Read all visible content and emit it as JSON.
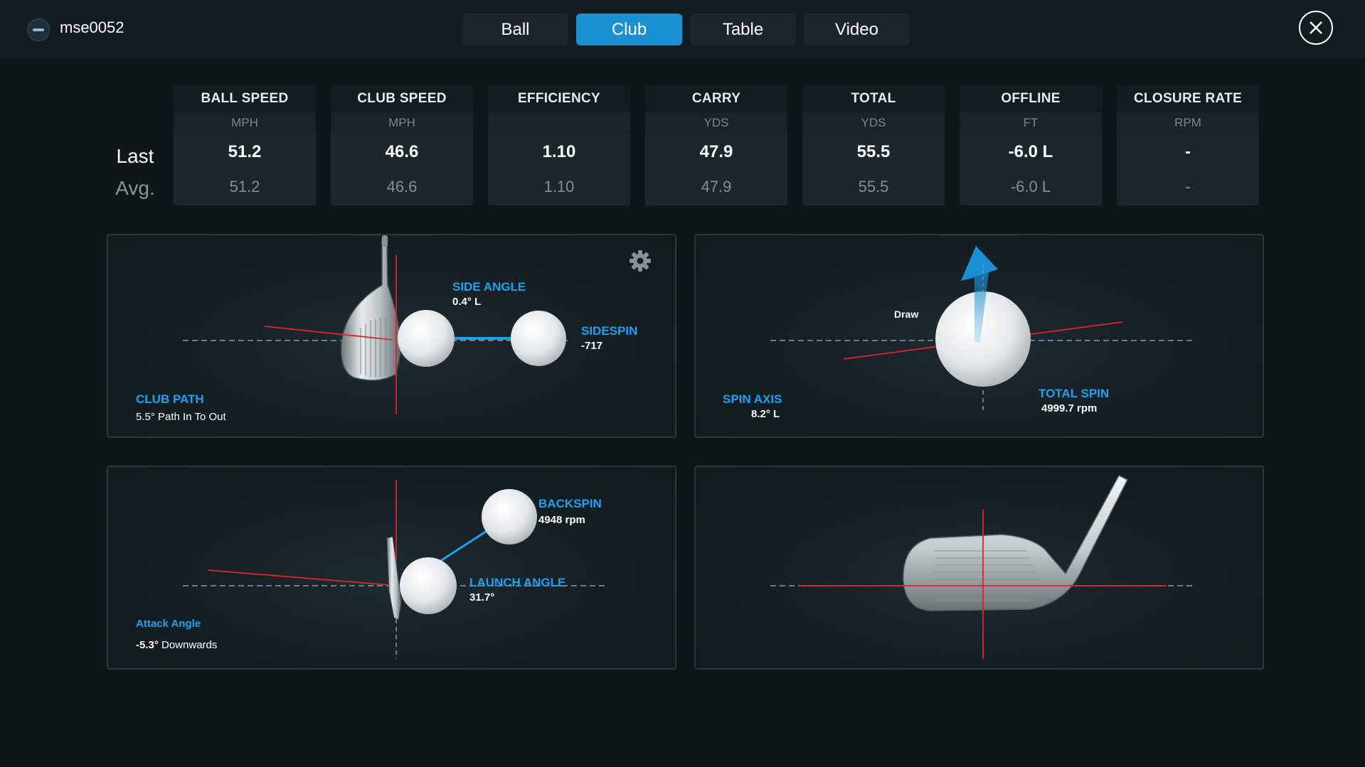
{
  "header": {
    "username": "mse0052",
    "tabs": [
      "Ball",
      "Club",
      "Table",
      "Video"
    ],
    "active_tab": "Club"
  },
  "rows": {
    "last": "Last",
    "avg": "Avg."
  },
  "metrics": [
    {
      "title": "BALL SPEED",
      "unit": "MPH",
      "last": "51.2",
      "avg": "51.2"
    },
    {
      "title": "CLUB SPEED",
      "unit": "MPH",
      "last": "46.6",
      "avg": "46.6"
    },
    {
      "title": "EFFICIENCY",
      "unit": "",
      "last": "1.10",
      "avg": "1.10"
    },
    {
      "title": "CARRY",
      "unit": "YDS",
      "last": "47.9",
      "avg": "47.9"
    },
    {
      "title": "TOTAL",
      "unit": "YDS",
      "last": "55.5",
      "avg": "55.5"
    },
    {
      "title": "OFFLINE",
      "unit": "FT",
      "last": "-6.0 L",
      "avg": "-6.0 L"
    },
    {
      "title": "CLOSURE RATE",
      "unit": "RPM",
      "last": "-",
      "avg": "-"
    }
  ],
  "panels": {
    "path": {
      "side_angle_label": "SIDE ANGLE",
      "side_angle_value": "0.4°  L",
      "sidespin_label": "SIDESPIN",
      "sidespin_value": "-717",
      "club_path_label": "CLUB PATH",
      "club_path_value": "5.5° Path In To Out"
    },
    "spin": {
      "draw_label": "Draw",
      "spin_axis_label": "SPIN AXIS",
      "spin_axis_value": "8.2°  L",
      "total_spin_label": "TOTAL SPIN",
      "total_spin_value": "4999.7 rpm"
    },
    "launch": {
      "backspin_label": "BACKSPIN",
      "backspin_value": "4948 rpm",
      "launch_angle_label": "LAUNCH ANGLE",
      "launch_angle_value": "31.7°",
      "attack_angle_label": "Attack Angle",
      "attack_angle_value": "-5.3°",
      "attack_angle_dir": "Downwards"
    }
  },
  "colors": {
    "accent": "#1a8fd2",
    "label_blue": "#1da1f2",
    "guide_red": "#e0232b",
    "background": "#0f1619"
  },
  "icons": [
    "close-icon",
    "gear-icon",
    "avatar"
  ]
}
